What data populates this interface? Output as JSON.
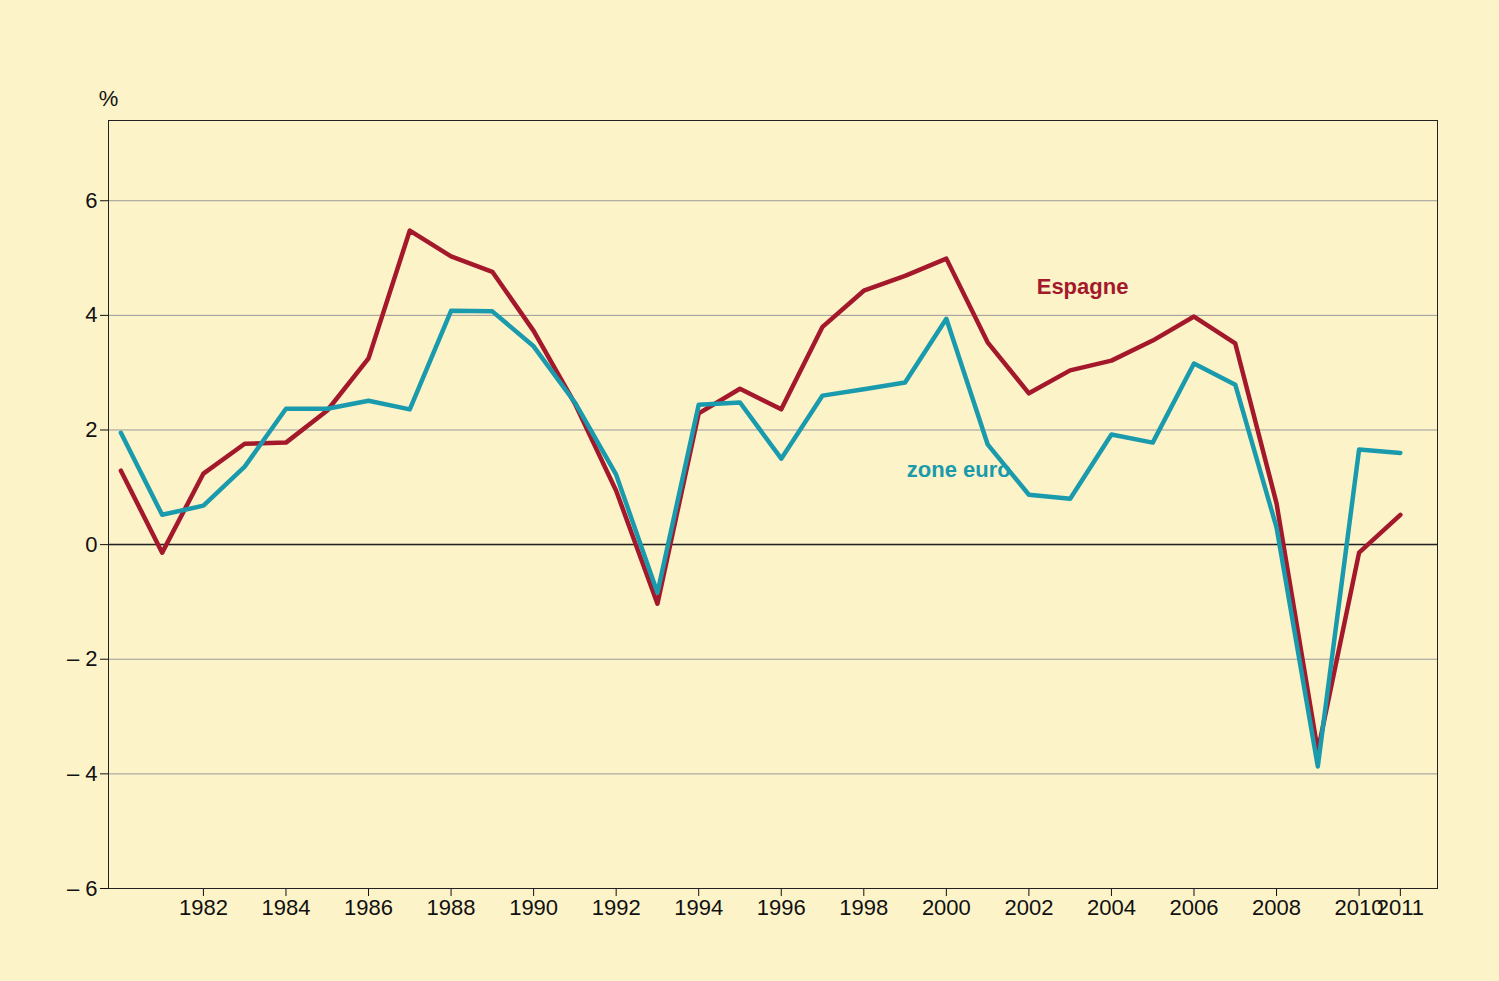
{
  "chart_data": {
    "type": "line",
    "y_label": "%",
    "x": [
      1980,
      1981,
      1982,
      1983,
      1984,
      1985,
      1986,
      1987,
      1988,
      1989,
      1990,
      1991,
      1992,
      1993,
      1994,
      1995,
      1996,
      1997,
      1998,
      1999,
      2000,
      2001,
      2002,
      2003,
      2004,
      2005,
      2006,
      2007,
      2008,
      2009,
      2010,
      2011
    ],
    "series": [
      {
        "name": "Espagne",
        "color": "#a3192b",
        "values": [
          1.29,
          -0.14,
          1.24,
          1.76,
          1.78,
          2.34,
          3.25,
          5.48,
          5.03,
          4.76,
          3.73,
          2.46,
          0.94,
          -1.03,
          2.29,
          2.72,
          2.36,
          3.8,
          4.43,
          4.69,
          4.99,
          3.53,
          2.64,
          3.04,
          3.21,
          3.56,
          3.98,
          3.51,
          0.72,
          -3.6,
          -0.14,
          0.52
        ]
      },
      {
        "name": "zone euro",
        "color": "#1a9aad",
        "values": [
          1.95,
          0.52,
          0.68,
          1.36,
          2.37,
          2.37,
          2.51,
          2.36,
          4.08,
          4.07,
          3.46,
          2.48,
          1.22,
          -0.84,
          2.44,
          2.48,
          1.5,
          2.6,
          2.71,
          2.83,
          3.94,
          1.75,
          0.87,
          0.8,
          1.92,
          1.78,
          3.16,
          2.79,
          0.3,
          -3.87,
          1.66,
          1.6
        ]
      }
    ],
    "annotations": [
      {
        "text": "Espagne",
        "x": 2003.3,
        "y": 4.5,
        "color": "#a3192b"
      },
      {
        "text": "zone euro",
        "x": 2000.3,
        "y": 1.3,
        "color": "#1a9aad"
      }
    ],
    "xlim": [
      1979.7,
      2011.9
    ],
    "xticks": [
      1982,
      1984,
      1986,
      1988,
      1990,
      1992,
      1994,
      1996,
      1998,
      2000,
      2002,
      2004,
      2006,
      2008,
      2010,
      2011
    ],
    "ylim": [
      -6,
      7.4
    ],
    "yticks": [
      {
        "value": -6,
        "label": "– 6"
      },
      {
        "value": -4,
        "label": "– 4"
      },
      {
        "value": -2,
        "label": "– 2"
      },
      0,
      2,
      4,
      6
    ],
    "grid": true
  }
}
